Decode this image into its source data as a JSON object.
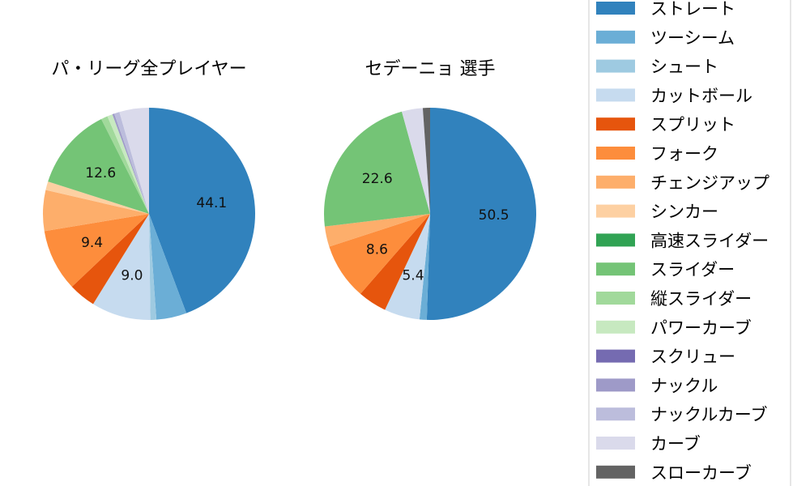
{
  "legend": {
    "items": [
      {
        "label": "ストレート",
        "color": "#3182bd"
      },
      {
        "label": "ツーシーム",
        "color": "#6baed6"
      },
      {
        "label": "シュート",
        "color": "#9ecae1"
      },
      {
        "label": "カットボール",
        "color": "#c6dbef"
      },
      {
        "label": "スプリット",
        "color": "#e6550d"
      },
      {
        "label": "フォーク",
        "color": "#fd8d3c"
      },
      {
        "label": "チェンジアップ",
        "color": "#fdae6b"
      },
      {
        "label": "シンカー",
        "color": "#fdd0a2"
      },
      {
        "label": "高速スライダー",
        "color": "#31a354"
      },
      {
        "label": "スライダー",
        "color": "#74c476"
      },
      {
        "label": "縦スライダー",
        "color": "#a1d99b"
      },
      {
        "label": "パワーカーブ",
        "color": "#c7e9c0"
      },
      {
        "label": "スクリュー",
        "color": "#756bb1"
      },
      {
        "label": "ナックル",
        "color": "#9e9ac8"
      },
      {
        "label": "ナックルカーブ",
        "color": "#bcbddc"
      },
      {
        "label": "カーブ",
        "color": "#dadaeb"
      },
      {
        "label": "スローカーブ",
        "color": "#636363"
      }
    ]
  },
  "chart_data": [
    {
      "type": "pie",
      "title": "パ・リーグ全プレイヤー",
      "labels": [
        "ストレート",
        "ツーシーム",
        "シュート",
        "カットボール",
        "スプリット",
        "フォーク",
        "チェンジアップ",
        "シンカー",
        "高速スライダー",
        "スライダー",
        "縦スライダー",
        "パワーカーブ",
        "スクリュー",
        "ナックル",
        "ナックルカーブ",
        "カーブ",
        "スローカーブ"
      ],
      "values": [
        44.1,
        4.6,
        0.9,
        9.0,
        4.1,
        9.4,
        6.2,
        1.3,
        0.0,
        12.6,
        1.0,
        0.8,
        0.0,
        0.3,
        0.8,
        4.5,
        0.0
      ],
      "data_labels": [
        "44.1",
        "",
        "",
        "9.0",
        "",
        "9.4",
        "",
        "",
        "",
        "12.6",
        "",
        "",
        "",
        "",
        "",
        "",
        ""
      ]
    },
    {
      "type": "pie",
      "title": "セデーニョ 選手",
      "labels": [
        "ストレート",
        "ツーシーム",
        "シュート",
        "カットボール",
        "スプリット",
        "フォーク",
        "チェンジアップ",
        "シンカー",
        "高速スライダー",
        "スライダー",
        "縦スライダー",
        "パワーカーブ",
        "スクリュー",
        "ナックル",
        "ナックルカーブ",
        "カーブ",
        "スローカーブ"
      ],
      "values": [
        50.5,
        1.1,
        0.0,
        5.4,
        4.4,
        8.6,
        3.1,
        0.0,
        0.0,
        22.6,
        0.0,
        0.0,
        0.0,
        0.0,
        0.0,
        3.2,
        1.1
      ],
      "data_labels": [
        "50.5",
        "",
        "",
        "5.4",
        "",
        "8.6",
        "",
        "",
        "",
        "22.6",
        "",
        "",
        "",
        "",
        "",
        "",
        ""
      ]
    }
  ]
}
